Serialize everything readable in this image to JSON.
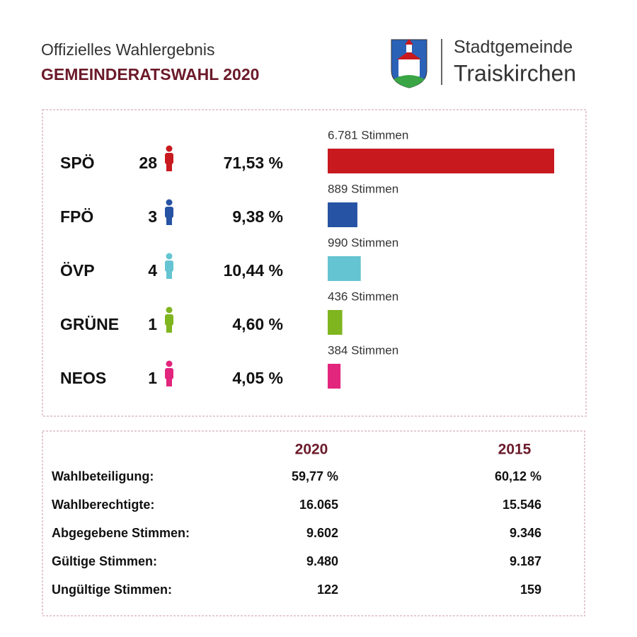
{
  "header": {
    "subtitle": "Offizielles Wahlergebnis",
    "title": "GEMEINDERATSWAHL 2020",
    "org_line1": "Stadtgemeinde",
    "org_line2": "Traiskirchen"
  },
  "chart_data": {
    "type": "bar",
    "categories": [
      "SPÖ",
      "FPÖ",
      "ÖVP",
      "GRÜNE",
      "NEOS"
    ],
    "seats": [
      28,
      3,
      4,
      1,
      1
    ],
    "percentages": [
      "71,53 %",
      "9,38 %",
      "10,44 %",
      "4,60 %",
      "4,05 %"
    ],
    "values": [
      6781,
      889,
      990,
      436,
      384
    ],
    "value_labels": [
      "6.781 Stimmen",
      "889 Stimmen",
      "990 Stimmen",
      "436 Stimmen",
      "384 Stimmen"
    ],
    "colors": [
      "#c8191f",
      "#2653a3",
      "#64c4d2",
      "#7fb51f",
      "#e2257d"
    ]
  },
  "table": {
    "columns": [
      "2020",
      "2015"
    ],
    "rows": [
      [
        "Wahlbeteiligung:",
        "59,77 %",
        "60,12 %"
      ],
      [
        "Wahlberechtigte:",
        "16.065",
        "15.546"
      ],
      [
        "Abgegebene Stimmen:",
        "9.602",
        "9.346"
      ],
      [
        "Gültige Stimmen:",
        "9.480",
        "9.187"
      ],
      [
        "Ungültige Stimmen:",
        "122",
        "159"
      ]
    ]
  }
}
